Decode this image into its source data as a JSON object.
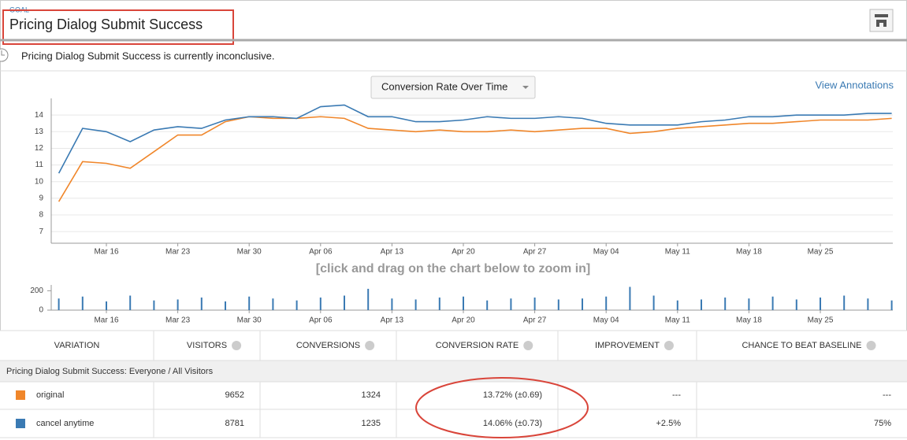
{
  "header": {
    "label": "GOAL",
    "title": "Pricing Dialog Submit Success",
    "status": "Pricing Dialog Submit Success is currently inconclusive."
  },
  "controls": {
    "dropdown": "Conversion Rate Over Time",
    "link": "View Annotations",
    "zoom_hint": "[click and drag on the chart below to zoom in]"
  },
  "chart_data": [
    {
      "type": "line",
      "categories": [
        null,
        null,
        "Mar 16",
        null,
        null,
        "Mar 23",
        null,
        null,
        "Mar 30",
        null,
        null,
        "Apr 06",
        null,
        null,
        "Apr 13",
        null,
        null,
        "Apr 20",
        null,
        null,
        "Apr 27",
        null,
        null,
        "May 04",
        null,
        null,
        "May 11",
        null,
        null,
        "May 18",
        null,
        null,
        "May 25",
        null,
        null,
        null
      ],
      "series": [
        {
          "name": "original",
          "color": "#f0862a",
          "values": [
            8.8,
            11.2,
            11.1,
            10.8,
            11.8,
            12.8,
            12.8,
            13.6,
            13.9,
            13.8,
            13.8,
            13.9,
            13.8,
            13.2,
            13.1,
            13.0,
            13.1,
            13.0,
            13.0,
            13.1,
            13.0,
            13.1,
            13.2,
            13.2,
            12.9,
            13.0,
            13.2,
            13.3,
            13.4,
            13.5,
            13.5,
            13.6,
            13.7,
            13.7,
            13.7,
            13.8
          ]
        },
        {
          "name": "cancel anytime",
          "color": "#3a7ab3",
          "values": [
            10.5,
            13.2,
            13.0,
            12.4,
            13.1,
            13.3,
            13.2,
            13.7,
            13.9,
            13.9,
            13.8,
            14.5,
            14.6,
            13.9,
            13.9,
            13.6,
            13.6,
            13.7,
            13.9,
            13.8,
            13.8,
            13.9,
            13.8,
            13.5,
            13.4,
            13.4,
            13.4,
            13.6,
            13.7,
            13.9,
            13.9,
            14.0,
            14.0,
            14.0,
            14.1,
            14.1
          ]
        }
      ],
      "ylim": [
        6.3,
        15
      ],
      "yticks": [
        7,
        8,
        9,
        10,
        11,
        12,
        13,
        14
      ],
      "grid": true
    },
    {
      "type": "bar",
      "color": "#3a7ab3",
      "categories": [
        null,
        null,
        "Mar 16",
        null,
        null,
        "Mar 23",
        null,
        null,
        "Mar 30",
        null,
        null,
        "Apr 06",
        null,
        null,
        "Apr 13",
        null,
        null,
        "Apr 20",
        null,
        null,
        "Apr 27",
        null,
        null,
        "May 04",
        null,
        null,
        "May 11",
        null,
        null,
        "May 18",
        null,
        null,
        "May 25",
        null,
        null,
        null
      ],
      "values": [
        120,
        140,
        90,
        150,
        100,
        110,
        130,
        90,
        140,
        120,
        100,
        130,
        150,
        220,
        120,
        110,
        130,
        140,
        100,
        120,
        130,
        110,
        120,
        140,
        240,
        150,
        100,
        110,
        130,
        120,
        140,
        110,
        130,
        150,
        120,
        100
      ],
      "ylim": [
        0,
        260
      ],
      "yticks": [
        0,
        200
      ],
      "grid": false
    }
  ],
  "table": {
    "columns": [
      "VARIATION",
      "VISITORS",
      "CONVERSIONS",
      "CONVERSION RATE",
      "IMPROVEMENT",
      "CHANCE TO BEAT BASELINE"
    ],
    "section": "Pricing Dialog Submit Success: Everyone / All Visitors",
    "rows": [
      {
        "color": "#f0862a",
        "cells": [
          "original",
          "9652",
          "1324",
          "13.72% (±0.69)",
          "---",
          "---"
        ]
      },
      {
        "color": "#3a7ab3",
        "cells": [
          "cancel anytime",
          "8781",
          "1235",
          "14.06% (±0.73)",
          "+2.5%",
          "75%"
        ]
      }
    ]
  }
}
